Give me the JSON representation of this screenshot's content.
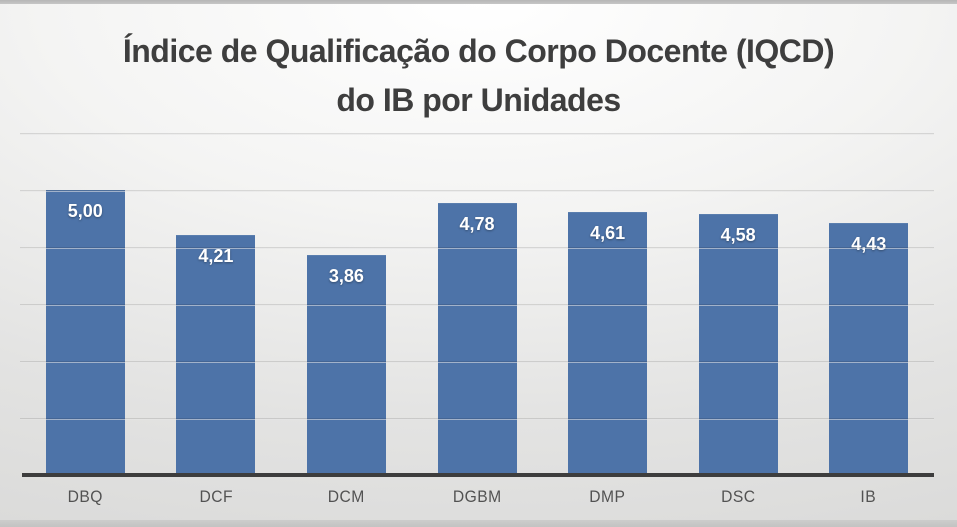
{
  "title": {
    "line1": "Índice de Qualificação do Corpo Docente (IQCD)",
    "line2": "do IB por Unidades"
  },
  "chart_data": {
    "type": "bar",
    "title": "Índice de Qualificação do Corpo Docente (IQCD) do IB por Unidades",
    "categories": [
      "DBQ",
      "DCF",
      "DCM",
      "DGBM",
      "DMP",
      "DSC",
      "IB"
    ],
    "values": [
      5.0,
      4.21,
      3.86,
      4.78,
      4.61,
      4.58,
      4.43
    ],
    "value_labels": [
      "5,00",
      "4,21",
      "3,86",
      "4,78",
      "4,61",
      "4,58",
      "4,43"
    ],
    "xlabel": "",
    "ylabel": "",
    "ylim": [
      0,
      6
    ],
    "gridline_step": 1,
    "grid": true,
    "y_tick_labels_visible": false,
    "legend_position": "none",
    "decimal_separator": ","
  },
  "colors": {
    "bar_fill": "#4d73a8",
    "bar_value_label": "#ffffff",
    "title_text": "#3e3e3e",
    "category_label": "#525252",
    "axis_line": "#3d3d3d",
    "gridline": "rgba(0,0,0,0.115)",
    "background_top": "#ffffff",
    "background_bottom": "#d9d9d8"
  }
}
